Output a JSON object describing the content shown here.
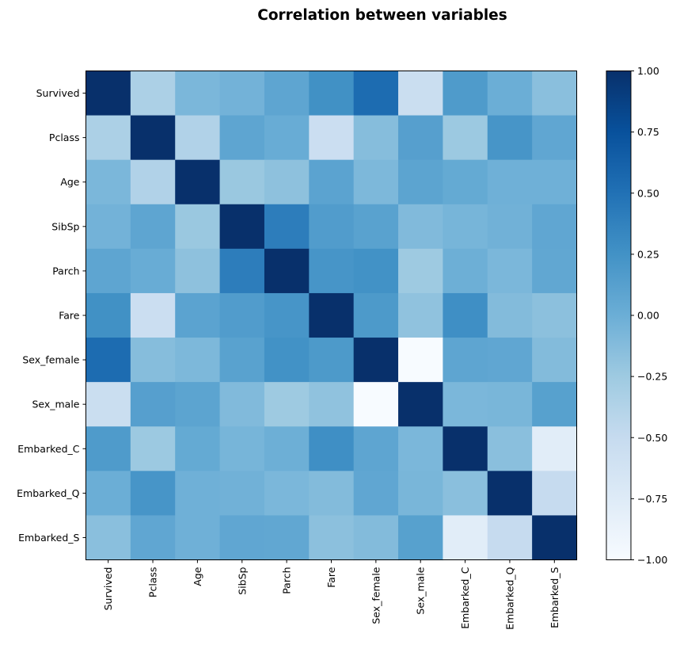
{
  "chart_data": {
    "type": "heatmap",
    "title": "Correlation between variables",
    "variables": [
      "Survived",
      "Pclass",
      "Age",
      "SibSp",
      "Parch",
      "Fare",
      "Sex_female",
      "Sex_male",
      "Embarked_C",
      "Embarked_Q",
      "Embarked_S"
    ],
    "matrix": [
      [
        1.0,
        -0.34,
        -0.08,
        -0.04,
        0.08,
        0.26,
        0.54,
        -0.54,
        0.17,
        0.0,
        -0.15
      ],
      [
        -0.34,
        1.0,
        -0.37,
        0.08,
        0.02,
        -0.55,
        -0.13,
        0.13,
        -0.24,
        0.22,
        0.07
      ],
      [
        -0.08,
        -0.37,
        1.0,
        -0.23,
        -0.17,
        0.1,
        -0.09,
        0.09,
        0.04,
        -0.02,
        -0.02
      ],
      [
        -0.04,
        0.08,
        -0.23,
        1.0,
        0.41,
        0.16,
        0.11,
        -0.11,
        -0.06,
        -0.03,
        0.07
      ],
      [
        0.08,
        0.02,
        -0.17,
        0.41,
        1.0,
        0.22,
        0.25,
        -0.25,
        -0.01,
        -0.08,
        0.06
      ],
      [
        0.26,
        -0.55,
        0.1,
        0.16,
        0.22,
        1.0,
        0.18,
        -0.18,
        0.27,
        -0.12,
        -0.16
      ],
      [
        0.54,
        -0.13,
        -0.09,
        0.11,
        0.25,
        0.18,
        1.0,
        -1.0,
        0.08,
        0.07,
        -0.12
      ],
      [
        -0.54,
        0.13,
        0.09,
        -0.11,
        -0.25,
        -0.18,
        -1.0,
        1.0,
        -0.08,
        -0.07,
        0.12
      ],
      [
        0.17,
        -0.24,
        0.04,
        -0.06,
        -0.01,
        0.27,
        0.08,
        -0.08,
        1.0,
        -0.15,
        -0.78
      ],
      [
        0.0,
        0.22,
        -0.02,
        -0.03,
        -0.08,
        -0.12,
        0.07,
        -0.07,
        -0.15,
        1.0,
        -0.5
      ],
      [
        -0.15,
        0.07,
        -0.02,
        0.07,
        0.06,
        -0.16,
        -0.12,
        0.12,
        -0.78,
        -0.5,
        1.0
      ]
    ],
    "colormap": "Blues",
    "vmin": -1.0,
    "vmax": 1.0,
    "colorbar_ticks": [
      "1.00",
      "0.75",
      "0.50",
      "0.25",
      "0.00",
      "−0.25",
      "−0.50",
      "−0.75",
      "−1.00"
    ],
    "colorbar_tick_values": [
      1.0,
      0.75,
      0.5,
      0.25,
      0.0,
      -0.25,
      -0.5,
      -0.75,
      -1.0
    ],
    "grid": false
  }
}
